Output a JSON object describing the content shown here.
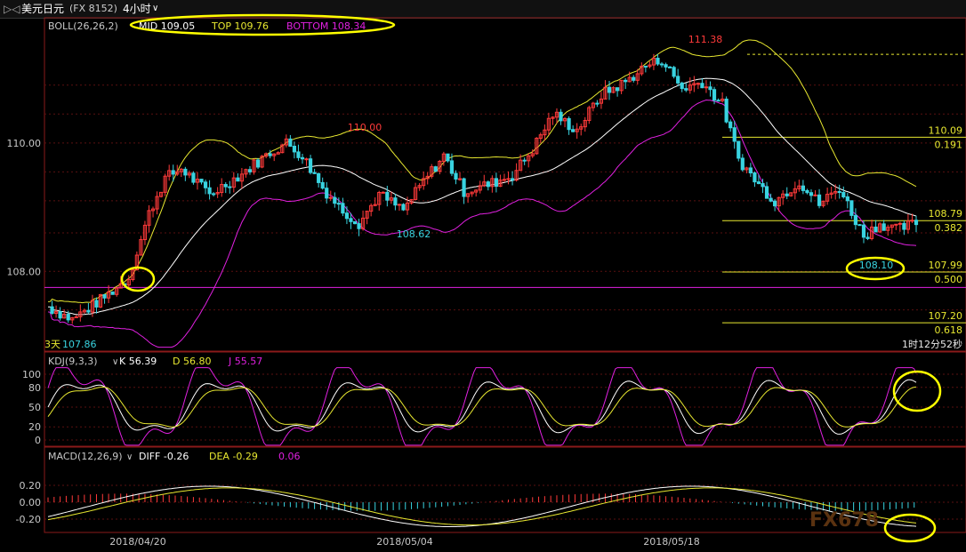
{
  "window": {
    "symbol": "美元日元",
    "code": "(FX 8152)",
    "period": "4小时"
  },
  "colors": {
    "up": "#ff3a3a",
    "down": "#39d3e0",
    "mid": "#ffffff",
    "top": "#e8e830",
    "bottom": "#e020e0",
    "k": "#ffffff",
    "d": "#e8e830",
    "j": "#e020e0",
    "highlight": "#ffff00"
  },
  "chart_data": {
    "type": "candlestick",
    "boll": {
      "label": "BOLL(26,26,2)",
      "mid_label": "MID 109.05",
      "top_label": "TOP 109.76",
      "bottom_label": "BOTTOM 108.34"
    },
    "price_axis": {
      "ticks": [
        "110.00",
        "108.00"
      ],
      "tick_values": [
        110.0,
        108.0
      ],
      "range": [
        106.8,
        111.7
      ]
    },
    "annotations": {
      "high": "111.38",
      "peak1": "110.00",
      "low1": "108.62",
      "low2": "108.10",
      "start_low": "107.86",
      "start_prefix": "3天"
    },
    "fib_levels": [
      {
        "price": "110.09",
        "ratio": "0.191",
        "value": 110.09
      },
      {
        "price": "108.79",
        "ratio": "0.382",
        "value": 108.79
      },
      {
        "price": "107.99",
        "ratio": "0.500",
        "value": 107.99
      },
      {
        "price": "107.20",
        "ratio": "0.618",
        "value": 107.2
      }
    ],
    "hline_value": 107.75,
    "countdown": "1时12分52秒",
    "kdj": {
      "label": "KDJ(9,3,3)",
      "k_label": "K 56.39",
      "d_label": "D 56.80",
      "j_label": "J 55.57",
      "ticks": [
        "100",
        "80",
        "50",
        "20",
        "0"
      ],
      "tick_values": [
        100,
        80,
        50,
        20,
        0
      ]
    },
    "macd": {
      "label": "MACD(12,26,9)",
      "diff_label": "DIFF -0.26",
      "dea_label": "DEA -0.29",
      "macd_label": "0.06",
      "ticks": [
        "0.20",
        "0.00",
        "-0.20"
      ],
      "tick_values": [
        0.2,
        0.0,
        -0.2
      ]
    },
    "dates": [
      "2018/04/20",
      "2018/05/04",
      "2018/05/18"
    ],
    "watermark": "FX678"
  }
}
